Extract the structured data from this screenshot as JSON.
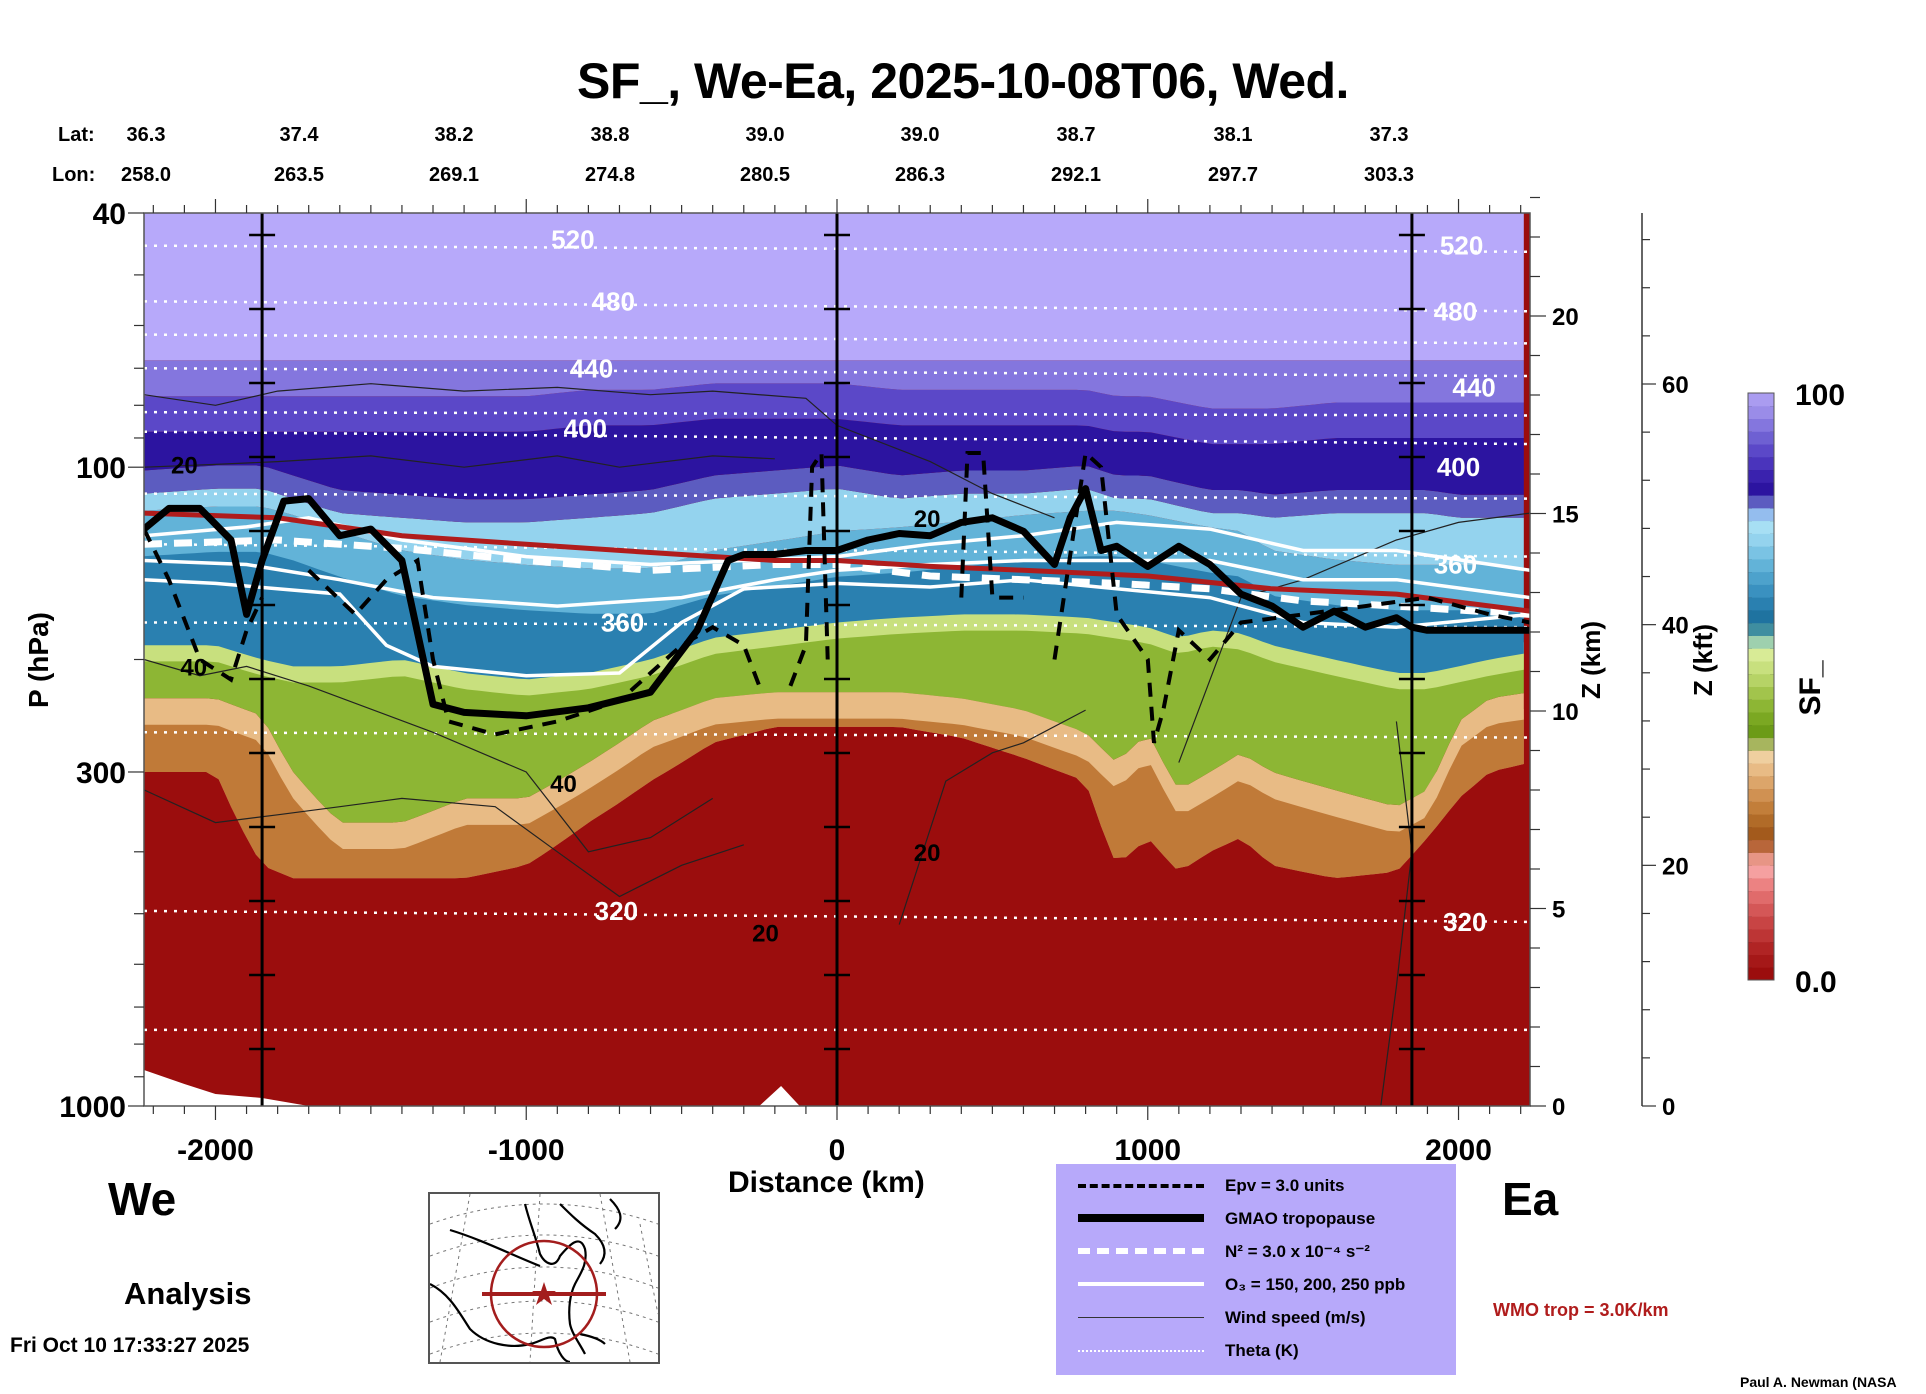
{
  "title": "SF_, We-Ea, 2025-10-08T06, Wed.",
  "coords": {
    "lat_label": "Lat:",
    "lon_label": "Lon:",
    "lat": [
      "36.3",
      "37.4",
      "38.2",
      "38.8",
      "39.0",
      "39.0",
      "38.7",
      "38.1",
      "37.3"
    ],
    "lon": [
      "258.0",
      "263.5",
      "269.1",
      "274.8",
      "280.5",
      "286.3",
      "292.1",
      "297.7",
      "303.3"
    ]
  },
  "direction": {
    "west": "We",
    "east": "Ea"
  },
  "run_type": "Analysis",
  "timestamp": "Fri Oct 10 17:33:27 2025",
  "credit": "Paul A. Newman (NASA",
  "wmo_note": "WMO trop = 3.0K/km",
  "colors": {
    "wmo_trop": "#b01c1c",
    "legend_bg": "#b7a9fa",
    "map_track": "#a31d1d"
  },
  "legend": [
    {
      "style": "black-dashed",
      "label": "Epv = 3.0 units"
    },
    {
      "style": "black-thick",
      "label": "GMAO tropopause"
    },
    {
      "style": "white-dashed",
      "label": "N² = 3.0 x 10⁻⁴ s⁻²"
    },
    {
      "style": "white-solid",
      "label": "O₃ = 150, 200, 250 ppb"
    },
    {
      "style": "black-thin",
      "label": "Wind speed (m/s)"
    },
    {
      "style": "white-dotted",
      "label": "Theta (K)"
    }
  ],
  "chart_data": {
    "type": "heatmap",
    "title": "SF_, We-Ea, 2025-10-08T06, Wed.",
    "xlabel": "Distance (km)",
    "ylabel": "P (hPa)",
    "y2label": "Z (km)",
    "y3label": "Z (kft)",
    "xlim": [
      -2230,
      2230
    ],
    "ylim": [
      1000,
      40
    ],
    "yscale": "log",
    "x_ticks": [
      "-2000",
      "-1000",
      "0",
      "1000",
      "2000"
    ],
    "x_tick_values": [
      -2000,
      -1000,
      0,
      1000,
      2000
    ],
    "y_ticks": [
      "40",
      "100",
      "300",
      "1000"
    ],
    "y_tick_values": [
      40,
      100,
      300,
      1000
    ],
    "z_km_ticks": [
      "0",
      "5",
      "10",
      "15",
      "20"
    ],
    "z_km_values": [
      0,
      5,
      10,
      15,
      20
    ],
    "z_kft_ticks": [
      "0",
      "20",
      "40",
      "60"
    ],
    "z_kft_values": [
      0,
      20,
      40,
      60
    ],
    "colorbar": {
      "label": "SF_",
      "min": "0.0",
      "max": "100",
      "colors": [
        "#9b0d0d",
        "#a51818",
        "#b02424",
        "#bd3535",
        "#c84444",
        "#d45757",
        "#e06b6b",
        "#ec8282",
        "#f5a0a0",
        "#e79585",
        "#b8663a",
        "#a35a1c",
        "#b16b28",
        "#c27e3a",
        "#d09152",
        "#dca56a",
        "#e8bb85",
        "#efcf9f",
        "#a7b55e",
        "#6c9b17",
        "#7ba822",
        "#8db634",
        "#a2c44c",
        "#b6d366",
        "#c8e07e",
        "#d8eb96",
        "#9ed0ae",
        "#3f8ea0",
        "#1f73a0",
        "#2a80b0",
        "#3a91c0",
        "#4da2cc",
        "#62b3d8",
        "#7ac3e4",
        "#94d3ee",
        "#a7dff4",
        "#94bdee",
        "#5c5cc0",
        "#2c14a0",
        "#3a22ae",
        "#4a34bc",
        "#5b48c8",
        "#6e60d2",
        "#8476de",
        "#9a8ce8",
        "#aa9cf0"
      ]
    },
    "vertical_markers_km": [
      -1850,
      0,
      1850
    ],
    "theta_labels": [
      {
        "value": "520",
        "x": -850,
        "p": 44
      },
      {
        "value": "480",
        "x": -720,
        "p": 55
      },
      {
        "value": "440",
        "x": -790,
        "p": 70
      },
      {
        "value": "400",
        "x": -810,
        "p": 87
      },
      {
        "value": "360",
        "x": -690,
        "p": 175
      },
      {
        "value": "320",
        "x": -710,
        "p": 495
      },
      {
        "value": "520",
        "x": 2010,
        "p": 45
      },
      {
        "value": "480",
        "x": 1990,
        "p": 57
      },
      {
        "value": "440",
        "x": 2050,
        "p": 75
      },
      {
        "value": "400",
        "x": 2000,
        "p": 100
      },
      {
        "value": "360",
        "x": 1990,
        "p": 142
      },
      {
        "value": "320",
        "x": 2020,
        "p": 515
      }
    ],
    "wind_labels": [
      {
        "value": "20",
        "x": -2100,
        "p": 99
      },
      {
        "value": "40",
        "x": -2070,
        "p": 205
      },
      {
        "value": "40",
        "x": -880,
        "p": 312
      },
      {
        "value": "20",
        "x": 290,
        "p": 120
      },
      {
        "value": "20",
        "x": -230,
        "p": 535
      },
      {
        "value": "20",
        "x": 290,
        "p": 400
      }
    ],
    "theta_levels_K": [
      320,
      360,
      400,
      440,
      480,
      520
    ],
    "tropopause_gmao_hPa": {
      "x": [
        -2230,
        -2150,
        -2050,
        -1950,
        -1900,
        -1850,
        -1780,
        -1700,
        -1600,
        -1500,
        -1400,
        -1300,
        -1200,
        -1000,
        -800,
        -600,
        -450,
        -350,
        -300,
        -200,
        -100,
        0,
        100,
        200,
        300,
        400,
        500,
        600,
        700,
        750,
        800,
        850,
        900,
        1000,
        1100,
        1200,
        1300,
        1400,
        1500,
        1600,
        1700,
        1800,
        1850,
        1900,
        2000,
        2100,
        2230
      ],
      "p": [
        125,
        116,
        116,
        130,
        170,
        140,
        113,
        112,
        128,
        125,
        140,
        235,
        242,
        245,
        238,
        225,
        180,
        140,
        137,
        137,
        135,
        135,
        130,
        127,
        128,
        122,
        120,
        126,
        142,
        120,
        108,
        135,
        133,
        143,
        133,
        142,
        158,
        165,
        178,
        168,
        178,
        172,
        178,
        180,
        180,
        180,
        180
      ]
    },
    "wmo_tropopause_hPa": {
      "x": [
        -2230,
        -1800,
        -1400,
        -1000,
        -600,
        -200,
        0,
        300,
        600,
        1000,
        1400,
        1800,
        2230
      ],
      "p": [
        118,
        120,
        128,
        132,
        136,
        140,
        140,
        143,
        145,
        148,
        155,
        158,
        168
      ]
    },
    "notes": "Curtain cross-section of SF_ (0-100) with overlaid Epv, GMAO/WMO tropopause, N², O3, wind speed and theta contours"
  }
}
